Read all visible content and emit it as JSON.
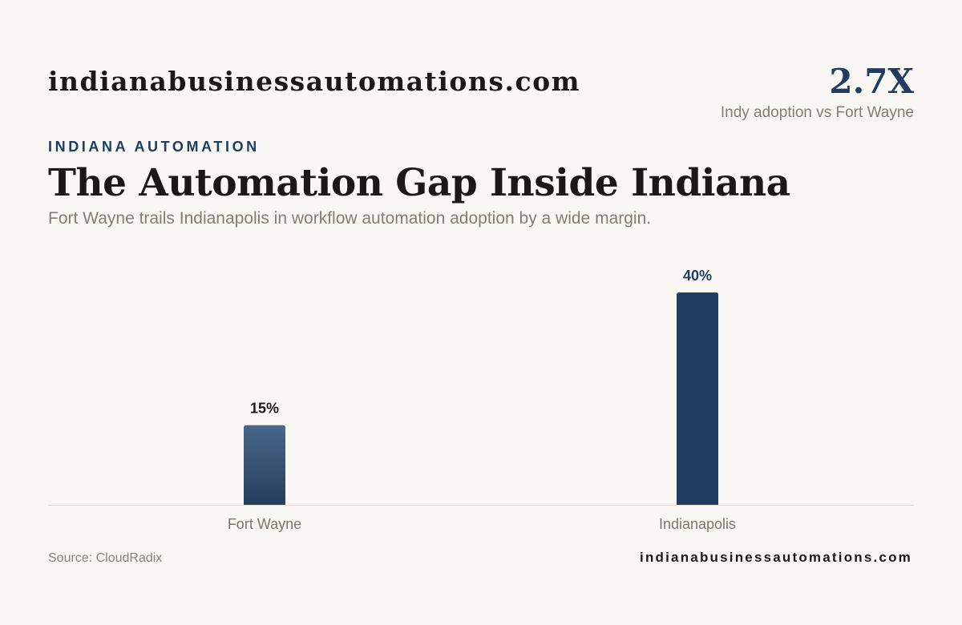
{
  "header": {
    "brand": "indianabusinessautomations.com",
    "kpi_value": "2.7X",
    "kpi_caption": "Indy adoption vs Fort Wayne",
    "eyebrow": "INDIANA AUTOMATION",
    "title": "The Automation Gap Inside Indiana",
    "subtitle": "Fort Wayne trails Indianapolis in workflow automation adoption by a wide margin."
  },
  "chart_data": {
    "type": "bar",
    "categories": [
      "Fort Wayne",
      "Indianapolis"
    ],
    "values": [
      15,
      40
    ],
    "value_labels": [
      "15%",
      "40%"
    ],
    "unit": "%",
    "colors": [
      "#3a5878",
      "#1f3d60"
    ],
    "label_colors": [
      "#1b1916",
      "#1f3d60"
    ],
    "ylim": [
      0,
      40
    ],
    "grid": false,
    "legend": "none"
  },
  "footer": {
    "source": "Source: CloudRadix",
    "url": "indianabusinessautomations.com"
  }
}
